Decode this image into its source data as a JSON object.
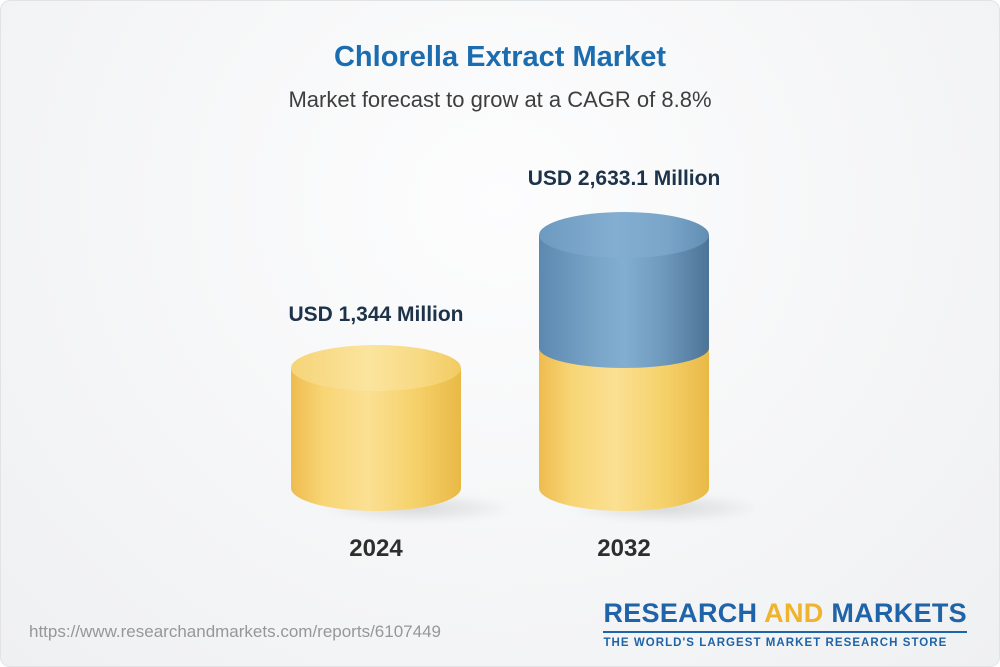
{
  "header": {
    "title": "Chlorella Extract Market",
    "subtitle": "Market forecast to grow at a CAGR of 8.8%"
  },
  "chart_data": {
    "type": "bar",
    "title": "Chlorella Extract Market",
    "subtitle": "Market forecast to grow at a CAGR of 8.8%",
    "cagr_percent": 8.8,
    "unit": "USD Million",
    "categories": [
      "2024",
      "2032"
    ],
    "values": [
      1344,
      2633.1
    ],
    "bars": [
      {
        "category": "2024",
        "value": 1344,
        "value_label": "USD 1,344 Million",
        "segments": [
          {
            "name": "base",
            "value": 1344,
            "color": "#f2c95f"
          }
        ]
      },
      {
        "category": "2032",
        "value": 2633.1,
        "value_label": "USD 2,633.1 Million",
        "segments": [
          {
            "name": "base",
            "value": 1344,
            "color": "#f2c95f"
          },
          {
            "name": "growth",
            "value": 1289.1,
            "color": "#5585ad"
          }
        ]
      }
    ],
    "ylim": [
      0,
      2633.1
    ],
    "grid": false,
    "legend": "none"
  },
  "footer": {
    "url": "https://www.researchandmarkets.com/reports/6107449",
    "logo": {
      "research": "RESEARCH",
      "and": "AND",
      "markets": "MARKETS",
      "tagline": "THE WORLD'S LARGEST MARKET RESEARCH STORE"
    }
  },
  "colors": {
    "title_blue": "#1b6daf",
    "subtitle_gray": "#3e3e3e",
    "value_label_navy": "#1d3349",
    "bar_yellow": "#f2c95f",
    "bar_blue": "#5585ad",
    "logo_blue": "#1f63a8",
    "logo_yellow": "#f0b32e",
    "url_gray": "#979797"
  }
}
